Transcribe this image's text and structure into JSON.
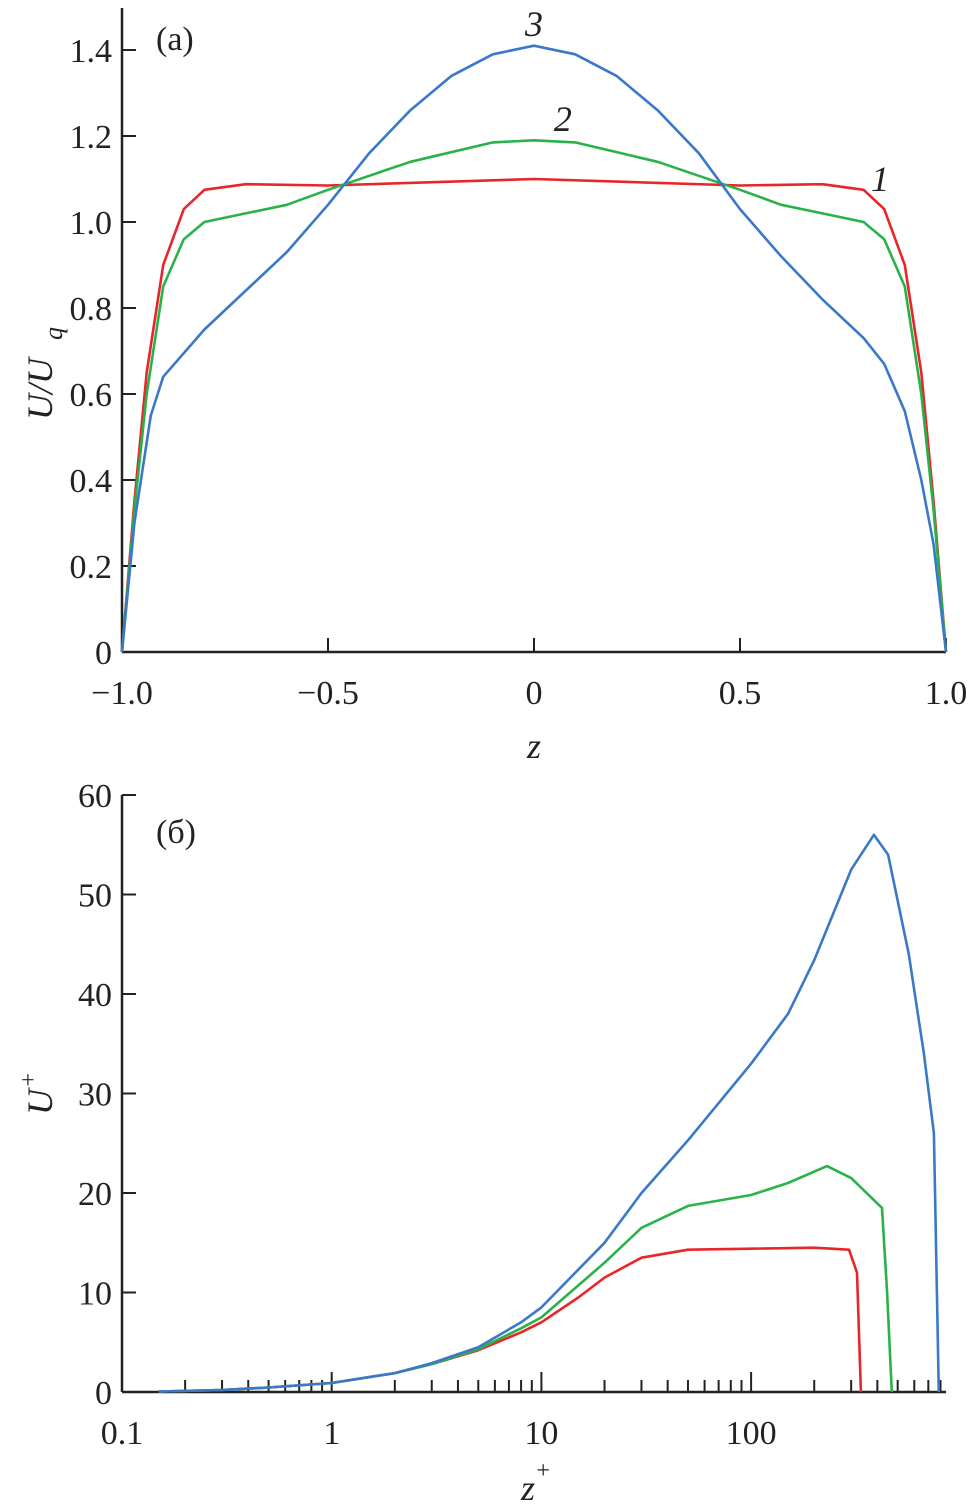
{
  "chart_data": [
    {
      "type": "line",
      "panel_label": "(a)",
      "xlabel": "z",
      "ylabel": "U/U_q",
      "ylabel_main": "U/U",
      "ylabel_sub": "q",
      "xlim": [
        -1,
        1
      ],
      "ylim": [
        0,
        1.5
      ],
      "xticks": [
        -1,
        -0.5,
        0,
        0.5,
        1
      ],
      "xtick_labels": [
        "−1.0",
        "−0.5",
        "0",
        "0.5",
        "1.0"
      ],
      "yticks": [
        0,
        0.2,
        0.4,
        0.6,
        0.8,
        1.0,
        1.2,
        1.4
      ],
      "ytick_labels": [
        "0",
        "0.2",
        "0.4",
        "0.6",
        "0.8",
        "1.0",
        "1.2",
        "1.4"
      ],
      "series": [
        {
          "name": "1",
          "color": "#e8262a",
          "label_at": [
            0.84,
            1.1
          ],
          "x": [
            -1,
            -0.97,
            -0.94,
            -0.9,
            -0.85,
            -0.8,
            -0.7,
            -0.5,
            0,
            0.5,
            0.7,
            0.8,
            0.85,
            0.9,
            0.94,
            0.97,
            1
          ],
          "y": [
            0,
            0.35,
            0.65,
            0.9,
            1.03,
            1.075,
            1.088,
            1.085,
            1.1,
            1.085,
            1.088,
            1.075,
            1.03,
            0.9,
            0.65,
            0.35,
            0
          ]
        },
        {
          "name": "2",
          "color": "#2ab24a",
          "label_at": [
            0.07,
            1.24
          ],
          "x": [
            -1,
            -0.97,
            -0.94,
            -0.9,
            -0.85,
            -0.8,
            -0.7,
            -0.6,
            -0.5,
            -0.3,
            -0.1,
            0,
            0.1,
            0.3,
            0.5,
            0.6,
            0.7,
            0.8,
            0.85,
            0.9,
            0.94,
            0.97,
            1
          ],
          "y": [
            0,
            0.33,
            0.6,
            0.85,
            0.96,
            1.0,
            1.02,
            1.04,
            1.075,
            1.14,
            1.185,
            1.19,
            1.185,
            1.14,
            1.075,
            1.04,
            1.02,
            1.0,
            0.96,
            0.85,
            0.6,
            0.33,
            0
          ]
        },
        {
          "name": "3",
          "color": "#3a78c8",
          "label_at": [
            0,
            1.46
          ],
          "x": [
            -1,
            -0.97,
            -0.93,
            -0.9,
            -0.8,
            -0.6,
            -0.5,
            -0.4,
            -0.3,
            -0.2,
            -0.1,
            0,
            0.1,
            0.2,
            0.3,
            0.4,
            0.5,
            0.6,
            0.7,
            0.8,
            0.85,
            0.9,
            0.94,
            0.97,
            1
          ],
          "y": [
            0,
            0.3,
            0.55,
            0.64,
            0.75,
            0.93,
            1.04,
            1.16,
            1.26,
            1.34,
            1.39,
            1.41,
            1.39,
            1.34,
            1.26,
            1.16,
            1.03,
            0.92,
            0.82,
            0.73,
            0.67,
            0.56,
            0.4,
            0.25,
            0
          ]
        }
      ]
    },
    {
      "type": "line",
      "panel_label": "(б)",
      "xlabel": "z+",
      "xlabel_main": "z",
      "xlabel_sup": "+",
      "ylabel": "U+",
      "ylabel_main": "U",
      "ylabel_sup": "+",
      "xscale": "log",
      "xlim": [
        0.1,
        850
      ],
      "ylim": [
        0,
        60
      ],
      "xticks": [
        0.1,
        1,
        10,
        100
      ],
      "xtick_labels": [
        "0.1",
        "1",
        "10",
        "100"
      ],
      "yticks": [
        0,
        10,
        20,
        30,
        40,
        50,
        60
      ],
      "ytick_labels": [
        "0",
        "10",
        "20",
        "30",
        "40",
        "50",
        "60"
      ],
      "series": [
        {
          "name": "1",
          "color": "#e8262a",
          "x": [
            0.15,
            0.3,
            0.5,
            1,
            2,
            3,
            5,
            8,
            10,
            15,
            20,
            30,
            50,
            100,
            200,
            293,
            320,
            334
          ],
          "y": [
            0.05,
            0.2,
            0.45,
            0.9,
            1.9,
            2.8,
            4.2,
            6,
            7,
            9.5,
            11.5,
            13.5,
            14.3,
            14.4,
            14.5,
            14.3,
            12,
            0
          ]
        },
        {
          "name": "2",
          "color": "#2ab24a",
          "x": [
            0.15,
            0.3,
            0.5,
            1,
            2,
            3,
            5,
            8,
            10,
            20,
            30,
            50,
            100,
            150,
            230,
            300,
            421,
            445,
            469
          ],
          "y": [
            0.05,
            0.2,
            0.45,
            0.9,
            1.9,
            2.8,
            4.3,
            6.4,
            7.5,
            13,
            16.5,
            18.7,
            19.8,
            21,
            22.7,
            21.5,
            18.5,
            10,
            0
          ]
        },
        {
          "name": "3",
          "color": "#3a78c8",
          "x": [
            0.15,
            0.3,
            0.5,
            1,
            2,
            3,
            5,
            8,
            10,
            20,
            30,
            50,
            100,
            150,
            200,
            300,
            385,
            450,
            565,
            667,
            744,
            785
          ],
          "y": [
            0.05,
            0.2,
            0.45,
            0.9,
            1.9,
            2.9,
            4.5,
            7,
            8.5,
            15,
            20,
            25.3,
            33,
            38,
            43.4,
            52.5,
            56,
            54,
            44,
            34,
            26,
            0
          ]
        }
      ]
    }
  ]
}
